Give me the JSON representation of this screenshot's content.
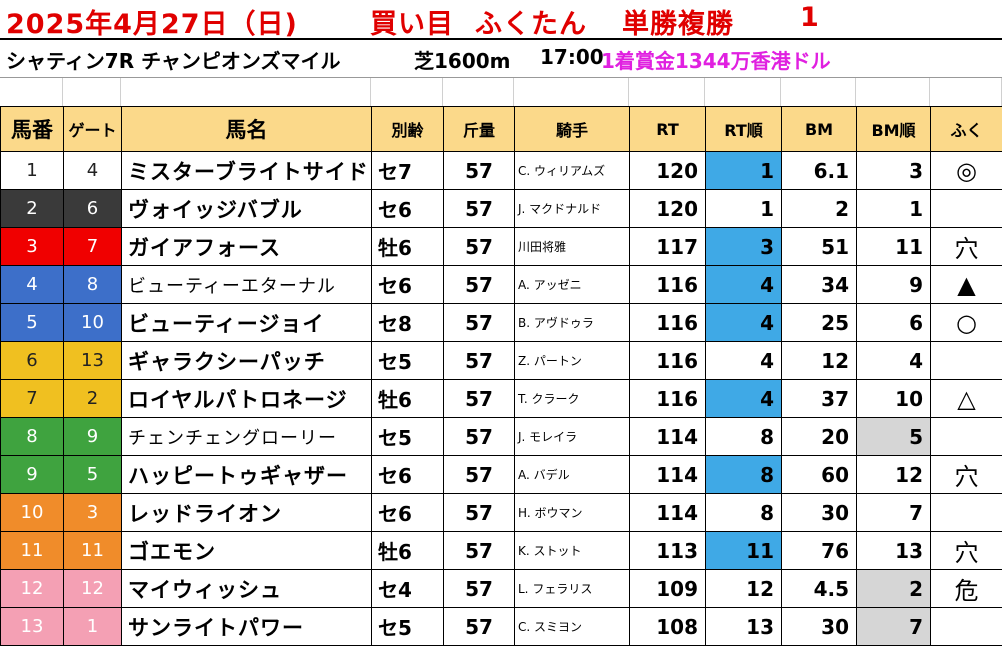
{
  "header": {
    "date": "2025年4月27日（日)",
    "label": "買い目",
    "author": "ふくたん",
    "bet": "単勝複勝",
    "number": "1"
  },
  "race": {
    "name": "シャティン7R チャンピオンズマイル",
    "course": "芝1600m",
    "time": "17:00",
    "prize": "1着賞金1344万香港ドル"
  },
  "columns": [
    "馬番",
    "ゲート",
    "馬名",
    "別齢",
    "斤量",
    "騎手",
    "RT",
    "RT順",
    "BM",
    "BM順",
    "ふく"
  ],
  "colors": {
    "gate_1": "#ffffff",
    "gate_2": "#3a3a3a",
    "gate_3": "#f00000",
    "gate_4": "#3d6fc9",
    "gate_5": "#f0c020",
    "gate_6": "#3fa33f",
    "gate_7": "#f08c2a",
    "gate_8": "#f4a0b4",
    "header_bg": "#fbd98a",
    "title_red": "#e00000",
    "prize_magenta": "#e020e0",
    "rt_highlight": "#3fa9e6",
    "bm_highlight": "#d6d6d6"
  },
  "horses": [
    {
      "num": "1",
      "gate": "4",
      "name": "ミスターブライトサイド",
      "sexage": "セ7",
      "weight": "57",
      "jockey": "C. ウィリアムズ",
      "rt": "120",
      "rt_rank": "1",
      "bm": "6.1",
      "bm_rank": "3",
      "mark": "◎",
      "frame": 1,
      "rt_hl": true,
      "bm_hl": false
    },
    {
      "num": "2",
      "gate": "6",
      "name": "ヴォイッジバブル",
      "sexage": "セ6",
      "weight": "57",
      "jockey": "J. マクドナルド",
      "rt": "120",
      "rt_rank": "1",
      "bm": "2",
      "bm_rank": "1",
      "mark": "",
      "frame": 2,
      "rt_hl": false,
      "bm_hl": false
    },
    {
      "num": "3",
      "gate": "7",
      "name": "ガイアフォース",
      "sexage": "牡6",
      "weight": "57",
      "jockey": "川田将雅",
      "rt": "117",
      "rt_rank": "3",
      "bm": "51",
      "bm_rank": "11",
      "mark": "穴",
      "frame": 3,
      "rt_hl": true,
      "bm_hl": false
    },
    {
      "num": "4",
      "gate": "8",
      "name": "ビューティーエターナル",
      "sexage": "セ6",
      "weight": "57",
      "jockey": "A. アッゼニ",
      "rt": "116",
      "rt_rank": "4",
      "bm": "34",
      "bm_rank": "9",
      "mark": "▲",
      "frame": 4,
      "rt_hl": true,
      "bm_hl": false
    },
    {
      "num": "5",
      "gate": "10",
      "name": "ビューティージョイ",
      "sexage": "セ8",
      "weight": "57",
      "jockey": "B. アヴドゥラ",
      "rt": "116",
      "rt_rank": "4",
      "bm": "25",
      "bm_rank": "6",
      "mark": "○",
      "frame": 4,
      "rt_hl": true,
      "bm_hl": false
    },
    {
      "num": "6",
      "gate": "13",
      "name": "ギャラクシーパッチ",
      "sexage": "セ5",
      "weight": "57",
      "jockey": "Z. パートン",
      "rt": "116",
      "rt_rank": "4",
      "bm": "12",
      "bm_rank": "4",
      "mark": "",
      "frame": 5,
      "rt_hl": false,
      "bm_hl": false
    },
    {
      "num": "7",
      "gate": "2",
      "name": "ロイヤルパトロネージ",
      "sexage": "牡6",
      "weight": "57",
      "jockey": "T. クラーク",
      "rt": "116",
      "rt_rank": "4",
      "bm": "37",
      "bm_rank": "10",
      "mark": "△",
      "frame": 5,
      "rt_hl": true,
      "bm_hl": false
    },
    {
      "num": "8",
      "gate": "9",
      "name": "チェンチェングローリー",
      "sexage": "セ5",
      "weight": "57",
      "jockey": "J. モレイラ",
      "rt": "114",
      "rt_rank": "8",
      "bm": "20",
      "bm_rank": "5",
      "mark": "",
      "frame": 6,
      "rt_hl": false,
      "bm_hl": true
    },
    {
      "num": "9",
      "gate": "5",
      "name": "ハッピートゥギャザー",
      "sexage": "セ6",
      "weight": "57",
      "jockey": "A. バデル",
      "rt": "114",
      "rt_rank": "8",
      "bm": "60",
      "bm_rank": "12",
      "mark": "穴",
      "frame": 6,
      "rt_hl": true,
      "bm_hl": false
    },
    {
      "num": "10",
      "gate": "3",
      "name": "レッドライオン",
      "sexage": "セ6",
      "weight": "57",
      "jockey": "H. ボウマン",
      "rt": "114",
      "rt_rank": "8",
      "bm": "30",
      "bm_rank": "7",
      "mark": "",
      "frame": 7,
      "rt_hl": false,
      "bm_hl": false
    },
    {
      "num": "11",
      "gate": "11",
      "name": "ゴエモン",
      "sexage": "牡6",
      "weight": "57",
      "jockey": "K. ストット",
      "rt": "113",
      "rt_rank": "11",
      "bm": "76",
      "bm_rank": "13",
      "mark": "穴",
      "frame": 7,
      "rt_hl": true,
      "bm_hl": false
    },
    {
      "num": "12",
      "gate": "12",
      "name": "マイウィッシュ",
      "sexage": "セ4",
      "weight": "57",
      "jockey": "L. フェラリス",
      "rt": "109",
      "rt_rank": "12",
      "bm": "4.5",
      "bm_rank": "2",
      "mark": "危",
      "frame": 8,
      "rt_hl": false,
      "bm_hl": true
    },
    {
      "num": "13",
      "gate": "1",
      "name": "サンライトパワー",
      "sexage": "セ5",
      "weight": "57",
      "jockey": "C. スミヨン",
      "rt": "108",
      "rt_rank": "13",
      "bm": "30",
      "bm_rank": "7",
      "mark": "",
      "frame": 8,
      "rt_hl": false,
      "bm_hl": true
    }
  ]
}
